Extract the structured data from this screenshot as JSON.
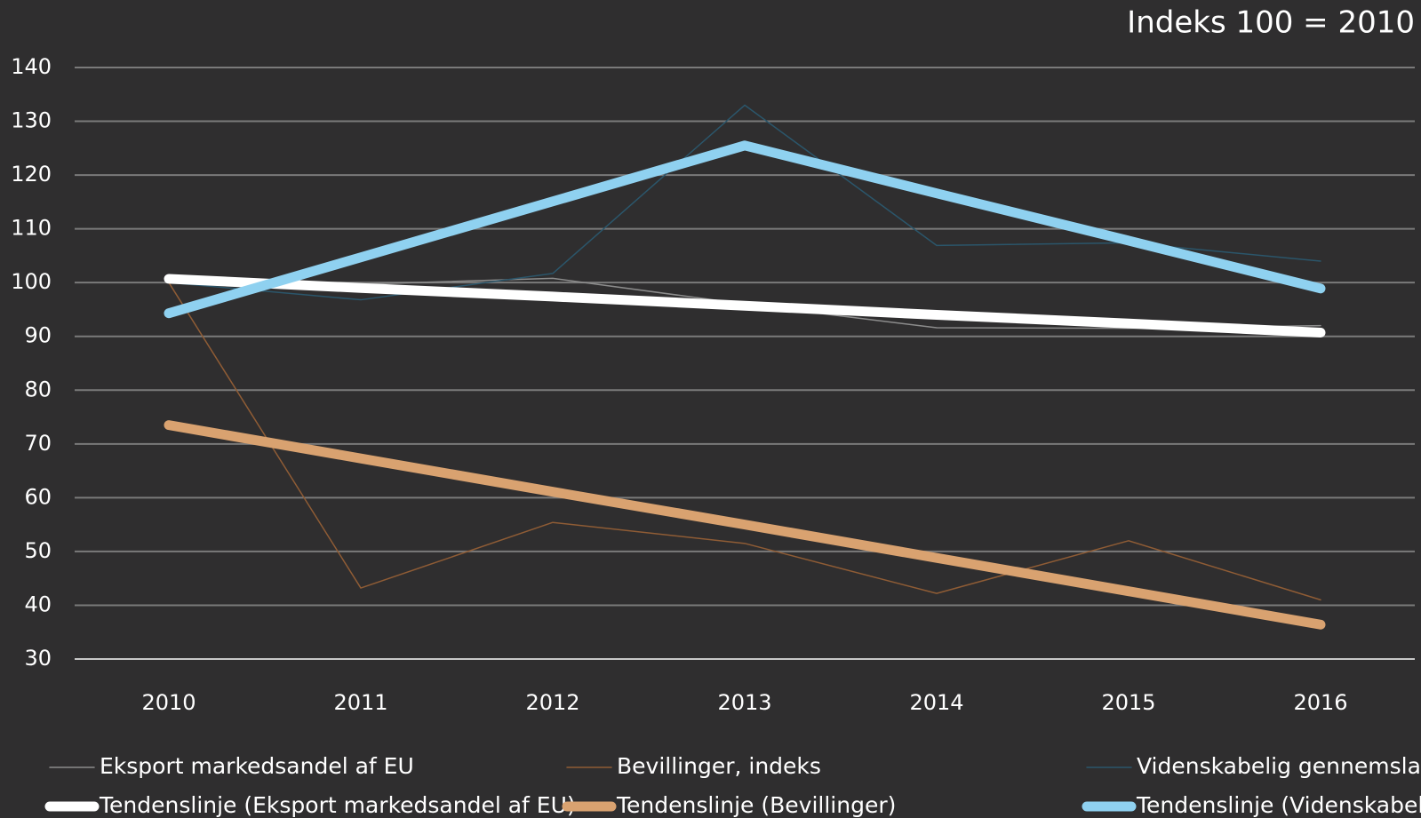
{
  "chart_data": {
    "type": "line",
    "title": "Indeks 100 = 2010",
    "categories": [
      "2010",
      "2011",
      "2012",
      "2013",
      "2014",
      "2015",
      "2016"
    ],
    "ylim": [
      30,
      140
    ],
    "yticks": [
      30,
      40,
      50,
      60,
      70,
      80,
      90,
      100,
      110,
      120,
      130,
      140
    ],
    "grid": true,
    "legend": "bottom",
    "series": [
      {
        "name": "Eksport markedsandel af EU",
        "color": "#8c8c8c",
        "values": [
          100,
          99.7,
          100.8,
          96,
          91.6,
          91.5,
          92
        ]
      },
      {
        "name": "Bevillinger, indeks",
        "color": "#8f5c35",
        "values": [
          100,
          43.2,
          55.4,
          51.5,
          42.2,
          52,
          41
        ]
      },
      {
        "name": "Videnskabelig gennemslags",
        "color": "#2b566b",
        "values": [
          100,
          96.8,
          101.7,
          133,
          106.9,
          107.4,
          104
        ]
      },
      {
        "name": "Tendenslinje (Eksport markedsandel af EU)",
        "color": "#ffffff",
        "values": [
          100.7,
          99.0,
          97.4,
          95.7,
          94.0,
          92.4,
          90.7
        ]
      },
      {
        "name": "Tendenslinje (Bevillinger)",
        "color": "#d9a270",
        "values": [
          73.5,
          67.3,
          61.1,
          55.0,
          48.8,
          42.6,
          36.4
        ]
      },
      {
        "name": "Tendenslinje (Videnskabelig",
        "color": "#8fd1f0",
        "values": [
          94.3,
          104.7,
          115.1,
          125.5,
          116.6,
          107.8,
          98.9
        ]
      }
    ]
  }
}
